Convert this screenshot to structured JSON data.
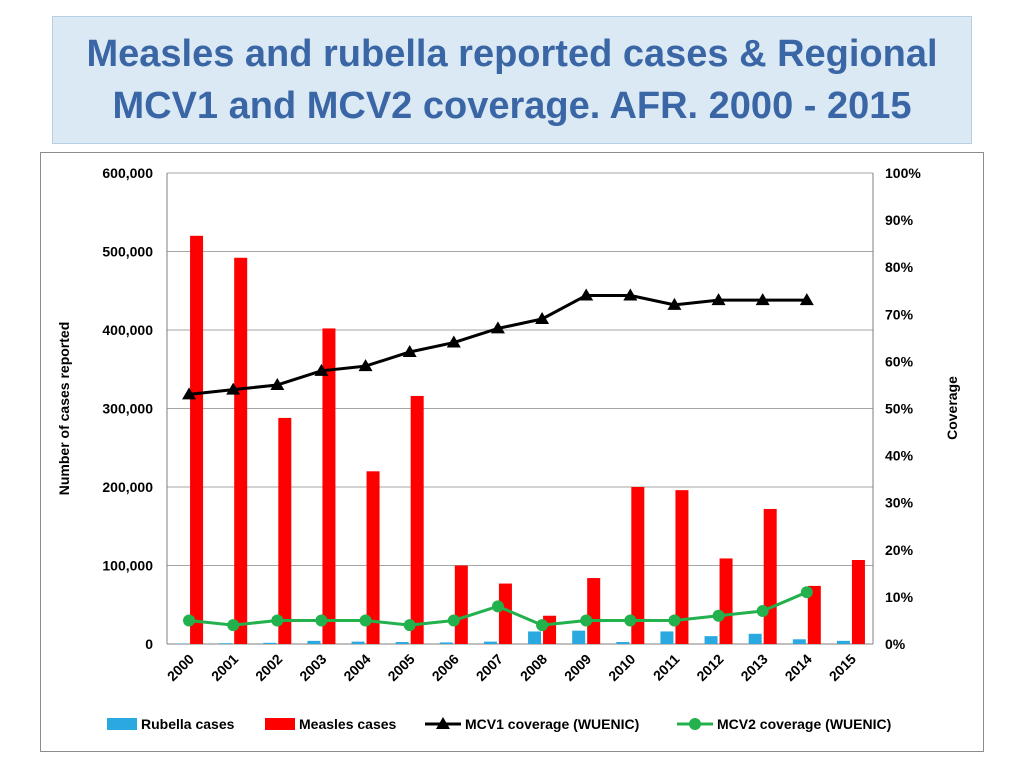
{
  "slide": {
    "title": "Measles and rubella reported cases & Regional MCV1 and MCV2 coverage. AFR. 2000 - 2015"
  },
  "colors": {
    "title": "#3a66a6",
    "rubella": "#29a9e0",
    "measles": "#ff0000",
    "mcv1": "#000000",
    "mcv2": "#22b14c",
    "grid": "#a6a6a6"
  },
  "chart_data": {
    "type": "bar",
    "title": "",
    "categories": [
      "2000",
      "2001",
      "2002",
      "2003",
      "2004",
      "2005",
      "2006",
      "2007",
      "2008",
      "2009",
      "2010",
      "2011",
      "2012",
      "2013",
      "2014",
      "2015"
    ],
    "ylabel": "Number of cases reported",
    "y2label": "Coverage",
    "ylim": [
      0,
      600000
    ],
    "y2lim": [
      0,
      100
    ],
    "y_ticks": [
      "0",
      "100,000",
      "200,000",
      "300,000",
      "400,000",
      "500,000",
      "600,000"
    ],
    "y2_ticks": [
      "0%",
      "10%",
      "20%",
      "30%",
      "40%",
      "50%",
      "60%",
      "70%",
      "80%",
      "90%",
      "100%"
    ],
    "grid": true,
    "legend_position": "bottom",
    "series": [
      {
        "name": "Rubella cases",
        "kind": "bar",
        "axis": "left",
        "values": [
          500,
          1000,
          1500,
          4000,
          3000,
          2500,
          2000,
          3000,
          16000,
          17000,
          2500,
          16000,
          10000,
          13000,
          6000,
          4000
        ]
      },
      {
        "name": "Measles cases",
        "kind": "bar",
        "axis": "left",
        "values": [
          520000,
          492000,
          288000,
          402000,
          220000,
          316000,
          100000,
          77000,
          36000,
          84000,
          200000,
          196000,
          109000,
          172000,
          74000,
          107000
        ]
      },
      {
        "name": "MCV1 coverage (WUENIC)",
        "kind": "line",
        "axis": "right",
        "values": [
          53,
          54,
          55,
          58,
          59,
          62,
          64,
          67,
          69,
          74,
          74,
          72,
          73,
          73,
          73,
          null
        ]
      },
      {
        "name": "MCV2 coverage (WUENIC)",
        "kind": "line",
        "axis": "right",
        "values": [
          5,
          4,
          5,
          5,
          5,
          4,
          5,
          8,
          4,
          5,
          5,
          5,
          6,
          7,
          11,
          null
        ]
      }
    ]
  }
}
